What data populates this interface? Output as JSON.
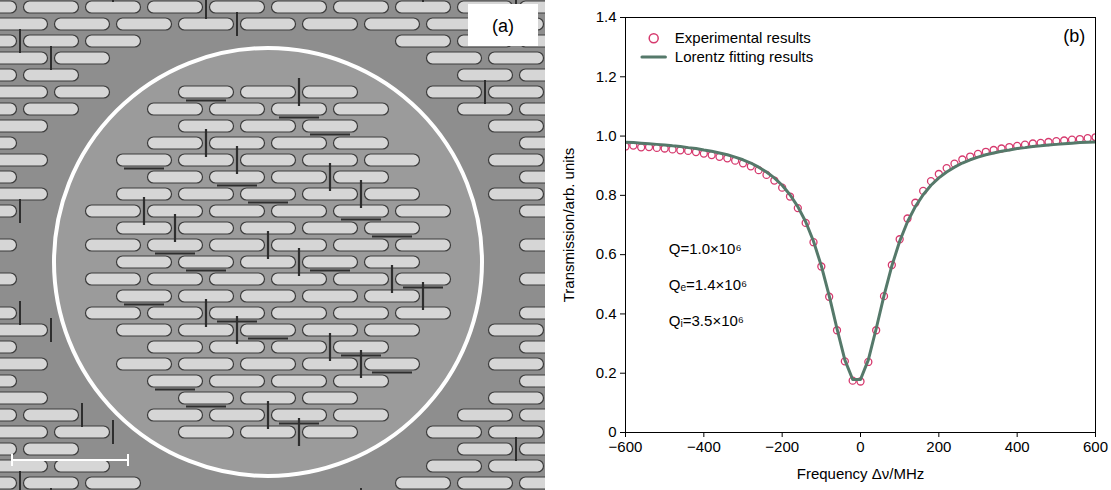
{
  "image_panel": {
    "label": "(a)"
  },
  "chart_data": {
    "type": "line",
    "panel_label": "(b)",
    "x_label": "Frequency Δν/MHz",
    "y_label": "Transmission/arb. units",
    "annotations": [
      "Q=1.0×10⁶",
      "Qₑ=1.4×10⁶",
      "Qᵢ=3.5×10⁶"
    ],
    "x": [
      -600,
      -580,
      -560,
      -540,
      -520,
      -500,
      -480,
      -460,
      -440,
      -420,
      -400,
      -380,
      -360,
      -340,
      -320,
      -300,
      -280,
      -260,
      -240,
      -220,
      -200,
      -180,
      -160,
      -140,
      -120,
      -100,
      -80,
      -60,
      -40,
      -20,
      0,
      20,
      40,
      60,
      80,
      100,
      120,
      140,
      160,
      180,
      200,
      220,
      240,
      260,
      280,
      300,
      320,
      340,
      360,
      380,
      400,
      420,
      440,
      460,
      480,
      500,
      520,
      540,
      560,
      580,
      600
    ],
    "series": [
      {
        "name": "Experimental results",
        "type": "scatter",
        "marker": "circle",
        "color": "#d63a6e",
        "values": [
          0.965,
          0.968,
          0.962,
          0.963,
          0.96,
          0.958,
          0.955,
          0.952,
          0.95,
          0.946,
          0.941,
          0.936,
          0.93,
          0.925,
          0.917,
          0.908,
          0.898,
          0.885,
          0.869,
          0.85,
          0.826,
          0.796,
          0.757,
          0.707,
          0.642,
          0.56,
          0.458,
          0.345,
          0.24,
          0.175,
          0.172,
          0.238,
          0.345,
          0.46,
          0.565,
          0.652,
          0.722,
          0.775,
          0.815,
          0.848,
          0.872,
          0.892,
          0.907,
          0.921,
          0.931,
          0.94,
          0.947,
          0.953,
          0.958,
          0.963,
          0.967,
          0.971,
          0.975,
          0.977,
          0.98,
          0.983,
          0.985,
          0.988,
          0.99,
          0.993,
          0.996
        ]
      },
      {
        "name": "Lorentz fitting results",
        "type": "line",
        "line_style": "solid",
        "color": "#55796a",
        "values": [
          0.979,
          0.978,
          0.976,
          0.974,
          0.972,
          0.97,
          0.967,
          0.965,
          0.961,
          0.958,
          0.953,
          0.949,
          0.943,
          0.937,
          0.929,
          0.92,
          0.909,
          0.895,
          0.879,
          0.859,
          0.834,
          0.802,
          0.762,
          0.711,
          0.645,
          0.562,
          0.462,
          0.35,
          0.245,
          0.179,
          0.179,
          0.245,
          0.35,
          0.462,
          0.562,
          0.645,
          0.711,
          0.762,
          0.802,
          0.834,
          0.859,
          0.879,
          0.895,
          0.909,
          0.92,
          0.929,
          0.937,
          0.943,
          0.949,
          0.953,
          0.958,
          0.961,
          0.965,
          0.967,
          0.97,
          0.972,
          0.974,
          0.976,
          0.978,
          0.979,
          0.98
        ]
      }
    ],
    "xlim": [
      -600,
      600
    ],
    "xticks": [
      -600,
      -400,
      -200,
      0,
      200,
      400,
      600
    ],
    "ylim": [
      0,
      1.4
    ],
    "yticks": [
      0,
      0.2,
      0.4,
      0.6,
      0.8,
      {
        "value": 1,
        "label": "1.0"
      },
      1.2,
      1.4
    ],
    "legend": "upper left",
    "grid": false
  }
}
